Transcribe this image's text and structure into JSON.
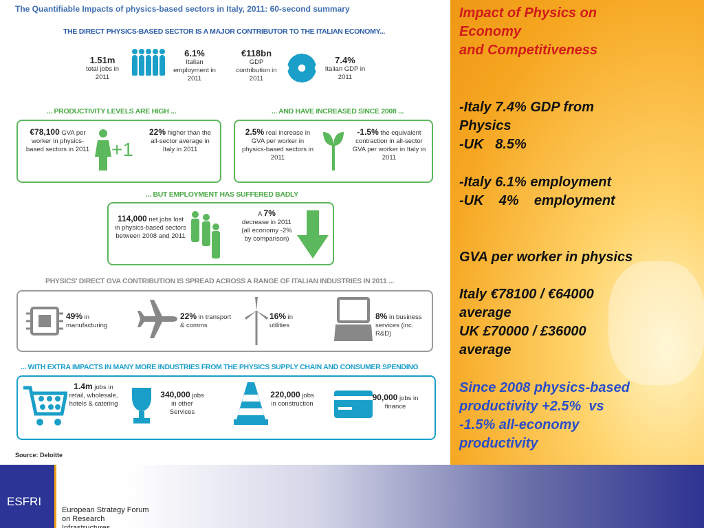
{
  "infographic": {
    "title": "The Quantifiable Impacts of physics-based sectors in Italy, 2011: 60-second summary",
    "banners": {
      "direct": "THE DIRECT PHYSICS-BASED SECTOR IS A MAJOR CONTRIBUTOR TO THE ITALIAN ECONOMY...",
      "productivity": "... PRODUCTIVITY LEVELS ARE HIGH ...",
      "increased": "... AND HAVE INCREASED SINCE 2008 ...",
      "employment": "... BUT EMPLOYMENT HAS SUFFERED BADLY",
      "gva": "PHYSICS' DIRECT GVA CONTRIBUTION IS SPREAD ACROSS A RANGE OF ITALIAN INDUSTRIES IN 2011 ...",
      "extra": "... WITH EXTRA IMPACTS IN MANY MORE INDUSTRIES FROM THE PHYSICS SUPPLY CHAIN AND CONSUMER SPENDING"
    },
    "top_stats": [
      {
        "value": "1.51m",
        "label": "total jobs in 2011"
      },
      {
        "value": "6.1%",
        "label": "Italian employment in 2011"
      },
      {
        "value": "€118bn",
        "label": "GDP contribution in 2011"
      },
      {
        "value": "7.4%",
        "label": "Italian GDP in 2011"
      }
    ],
    "productivity": {
      "gva_value": "€78,100",
      "gva_label": "GVA per worker in physics-based sectors in 2011",
      "plus": "+1",
      "higher_value": "22%",
      "higher_label": "higher than the all-sector average in Italy in 2011"
    },
    "increase": {
      "real_value": "2.5%",
      "real_label": "real increase in GVA per worker in physics-based sectors in 2011",
      "contract_value": "-1.5%",
      "contract_label": "the equivalent contraction in all-sector GVA per worker in Italy in 2011"
    },
    "employment": {
      "jobs_value": "114,000",
      "jobs_label": "net jobs lost in physics-based sectors between 2008 and 2011",
      "decrease_prefix": "A",
      "decrease_value": "7%",
      "decrease_label": "decrease in 2011 (all economy -2% by comparison)"
    },
    "sectors": [
      {
        "value": "49%",
        "label": "in manufacturing"
      },
      {
        "value": "22%",
        "label": "in transport & comms"
      },
      {
        "value": "16%",
        "label": "in utilities"
      },
      {
        "value": "8%",
        "label": "in business services (inc. R&D)"
      }
    ],
    "extra_impacts": [
      {
        "value": "1.4m",
        "label": "jobs in retail, wholesale, hotels & catering"
      },
      {
        "value": "340,000",
        "label": "jobs in other Services"
      },
      {
        "value": "220,000",
        "label": "jobs in construction"
      },
      {
        "value": "90,000",
        "label": "jobs in finance"
      }
    ],
    "source": "Source: Deloitte"
  },
  "notes": {
    "heading": "Impact of Physics on\nEconomy\nand Competitiveness",
    "gdp": "-Italy 7.4% GDP from\nPhysics\n-UK   8.5%",
    "employment": "-Italy 6.1% employment\n-UK    4%    employment",
    "gva_heading": "GVA per worker in physics",
    "gva_values": "Italy €78100 / €64000\naverage\nUK £70000 / £36000\naverage",
    "productivity": "Since 2008 physics-based\nproductivity +2.5%  vs\n-1.5% all-economy\nproductivity"
  },
  "footer": {
    "logo": "ESFRI",
    "subtitle": "European Strategy Forum\non Research\nInfrastructures"
  }
}
